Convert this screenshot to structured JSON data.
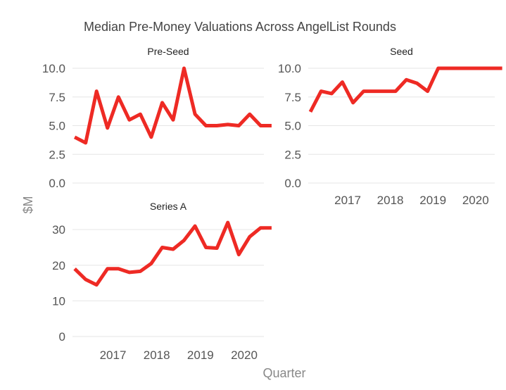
{
  "chart_data": {
    "type": "line",
    "title": "Median Pre-Money Valuations Across AngelList Rounds",
    "xlabel": "Quarter",
    "ylabel": "$M",
    "line_color": "#ee2a24",
    "x_ticks": [
      "2017",
      "2018",
      "2019",
      "2020"
    ],
    "grid": true,
    "panels": [
      {
        "name": "Pre-Seed",
        "y_ticks": [
          "0.0",
          "2.5",
          "5.0",
          "7.5",
          "10.0"
        ],
        "ylim": [
          0,
          10
        ],
        "x": [
          "2016 Q1",
          "2016 Q2",
          "2016 Q3",
          "2016 Q4",
          "2017 Q1",
          "2017 Q2",
          "2017 Q3",
          "2017 Q4",
          "2018 Q1",
          "2018 Q2",
          "2018 Q3",
          "2018 Q4",
          "2019 Q1",
          "2019 Q2",
          "2019 Q3",
          "2019 Q4",
          "2020 Q1",
          "2020 Q2",
          "2020 Q3"
        ],
        "values": [
          4.0,
          3.5,
          8.0,
          4.8,
          7.5,
          5.5,
          6.0,
          4.0,
          7.0,
          5.5,
          10.0,
          6.0,
          5.0,
          5.0,
          5.1,
          5.0,
          6.0,
          5.0,
          5.0
        ]
      },
      {
        "name": "Seed",
        "y_ticks": [
          "0.0",
          "2.5",
          "5.0",
          "7.5",
          "10.0"
        ],
        "ylim": [
          0,
          10
        ],
        "x": [
          "2016 Q1",
          "2016 Q2",
          "2016 Q3",
          "2016 Q4",
          "2017 Q1",
          "2017 Q2",
          "2017 Q3",
          "2017 Q4",
          "2018 Q1",
          "2018 Q2",
          "2018 Q3",
          "2018 Q4",
          "2019 Q1",
          "2019 Q2",
          "2019 Q3",
          "2019 Q4",
          "2020 Q1",
          "2020 Q2",
          "2020 Q3"
        ],
        "values": [
          6.2,
          8.0,
          7.8,
          8.8,
          7.0,
          8.0,
          8.0,
          8.0,
          8.0,
          9.0,
          8.7,
          8.0,
          10.0,
          10.0,
          10.0,
          10.0,
          10.0,
          10.0,
          10.0
        ]
      },
      {
        "name": "Series A",
        "y_ticks": [
          "0",
          "10",
          "20",
          "30"
        ],
        "ylim": [
          0,
          33
        ],
        "x": [
          "2016 Q1",
          "2016 Q2",
          "2016 Q3",
          "2016 Q4",
          "2017 Q1",
          "2017 Q2",
          "2017 Q3",
          "2017 Q4",
          "2018 Q1",
          "2018 Q2",
          "2018 Q3",
          "2018 Q4",
          "2019 Q1",
          "2019 Q2",
          "2019 Q3",
          "2019 Q4",
          "2020 Q1",
          "2020 Q2",
          "2020 Q3"
        ],
        "values": [
          19.0,
          16.0,
          14.5,
          19.0,
          19.0,
          18.0,
          18.3,
          20.5,
          25.0,
          24.5,
          27.0,
          31.0,
          25.0,
          24.8,
          32.0,
          23.0,
          28.0,
          30.5,
          30.5
        ]
      }
    ]
  }
}
